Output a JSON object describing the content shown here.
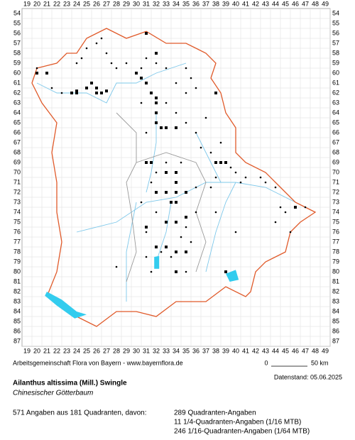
{
  "grid": {
    "columns": [
      19,
      20,
      21,
      22,
      23,
      24,
      25,
      26,
      27,
      28,
      29,
      30,
      31,
      32,
      33,
      34,
      35,
      36,
      37,
      38,
      39,
      40,
      41,
      42,
      43,
      44,
      45,
      46,
      47,
      48,
      49
    ],
    "rows": [
      54,
      55,
      56,
      57,
      58,
      59,
      60,
      61,
      62,
      63,
      64,
      65,
      66,
      67,
      68,
      69,
      70,
      71,
      72,
      73,
      74,
      75,
      76,
      77,
      78,
      79,
      80,
      81,
      82,
      83,
      84,
      85,
      86,
      87
    ]
  },
  "records": {
    "quadrants": [
      [
        20,
        60
      ],
      [
        21,
        60
      ],
      [
        23.5,
        62
      ],
      [
        24,
        61.8
      ],
      [
        25,
        61.5
      ],
      [
        25.5,
        61
      ],
      [
        26,
        62
      ],
      [
        26.5,
        62
      ],
      [
        27,
        61.8
      ],
      [
        30,
        60
      ],
      [
        30.5,
        60.5
      ],
      [
        31,
        61
      ],
      [
        31.5,
        62
      ],
      [
        32,
        62.5
      ],
      [
        32,
        63
      ],
      [
        32,
        64
      ],
      [
        32,
        65
      ],
      [
        32.5,
        65.5
      ],
      [
        33,
        65.5
      ],
      [
        34,
        65.5
      ],
      [
        31,
        69
      ],
      [
        31.5,
        69
      ],
      [
        33,
        70
      ],
      [
        34,
        70
      ],
      [
        34,
        71
      ],
      [
        33,
        72
      ],
      [
        34,
        72
      ],
      [
        35,
        72
      ],
      [
        32,
        72
      ],
      [
        33.5,
        73
      ],
      [
        34,
        73
      ],
      [
        33,
        75
      ],
      [
        34,
        75
      ],
      [
        35,
        74.5
      ],
      [
        32,
        77.5
      ],
      [
        33,
        77.5
      ],
      [
        34,
        78
      ],
      [
        35,
        78
      ],
      [
        38,
        62
      ],
      [
        38.5,
        69
      ],
      [
        38,
        69
      ],
      [
        39,
        69
      ],
      [
        34,
        80
      ],
      [
        39,
        80
      ],
      [
        31,
        75.5
      ],
      [
        46,
        73.5
      ],
      [
        24,
        62
      ],
      [
        26,
        61.5
      ],
      [
        32,
        58
      ],
      [
        31,
        56
      ]
    ],
    "sixteenths": [
      [
        20,
        59.5
      ],
      [
        21.5,
        61.5
      ],
      [
        22.5,
        62
      ],
      [
        24,
        59
      ],
      [
        24.5,
        58.5
      ],
      [
        25,
        57.5
      ],
      [
        26,
        57
      ],
      [
        26.5,
        56.5
      ],
      [
        27,
        58
      ],
      [
        27.5,
        59
      ],
      [
        28,
        59.5
      ],
      [
        29,
        59
      ],
      [
        30.5,
        59.5
      ],
      [
        31,
        58.5
      ],
      [
        32,
        59
      ],
      [
        33,
        59.5
      ],
      [
        35,
        59.5
      ],
      [
        35.5,
        60.5
      ],
      [
        34,
        61
      ],
      [
        35,
        62
      ],
      [
        36,
        61.5
      ],
      [
        33,
        63
      ],
      [
        34,
        64
      ],
      [
        35,
        65
      ],
      [
        36,
        66
      ],
      [
        37,
        64.5
      ],
      [
        36.5,
        67.5
      ],
      [
        37.5,
        68
      ],
      [
        38.5,
        67
      ],
      [
        39.5,
        69.5
      ],
      [
        40,
        70
      ],
      [
        38,
        70.5
      ],
      [
        36,
        71.5
      ],
      [
        37.5,
        71.5
      ],
      [
        40.5,
        71
      ],
      [
        41,
        70.5
      ],
      [
        42.5,
        70.5
      ],
      [
        43,
        71
      ],
      [
        44,
        71.5
      ],
      [
        44.5,
        73.5
      ],
      [
        45,
        74
      ],
      [
        47,
        73.5
      ],
      [
        45.5,
        76
      ],
      [
        44,
        75
      ],
      [
        40,
        76
      ],
      [
        38,
        74
      ],
      [
        36,
        74
      ],
      [
        35,
        75.5
      ],
      [
        34.5,
        76.5
      ],
      [
        35.5,
        77
      ],
      [
        33.5,
        78.5
      ],
      [
        32.5,
        78
      ],
      [
        31,
        78.5
      ],
      [
        30.5,
        73
      ],
      [
        31.5,
        71
      ],
      [
        32,
        70
      ],
      [
        33,
        69
      ],
      [
        34.5,
        69
      ],
      [
        31,
        66
      ],
      [
        30.5,
        63
      ],
      [
        28,
        79.5
      ],
      [
        35,
        80
      ],
      [
        31.5,
        80
      ],
      [
        31,
        76
      ],
      [
        32,
        74
      ]
    ]
  },
  "footer": {
    "credit": "Arbeitsgemeinschaft Flora von Bayern - www.bayernflora.de",
    "scale_start": "0",
    "scale_end": "50 km",
    "date": "Datenstand: 05.06.2025",
    "species": "Ailanthus altissima (Mill.) Swingle",
    "common_name": "Chinesischer Götterbaum",
    "summary": "571 Angaben aus 181 Quadranten, davon:",
    "detail_1": "289 Quadranten-Angaben",
    "detail_2": "11 1/4-Quadranten-Angaben (1/16 MTB)",
    "detail_3": "246 1/16-Quadranten-Angaben (1/64 MTB)"
  }
}
